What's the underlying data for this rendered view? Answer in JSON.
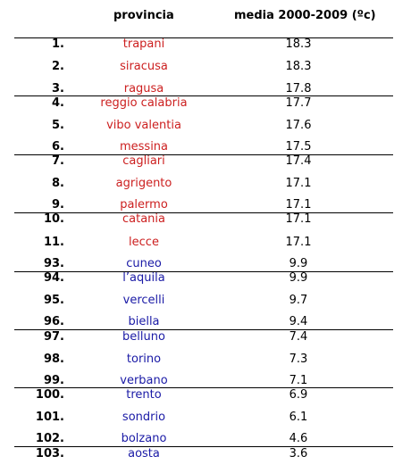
{
  "header": {
    "provincia_label": "provincia",
    "media_label": "media 2000-2009 (ºc)"
  },
  "colors": {
    "top": "#cc1f1f",
    "bottom": "#1a1aa6",
    "rules": "#000000"
  },
  "rows": [
    {
      "rank": "1.",
      "province": "trapani",
      "value": "18.3",
      "group": "top"
    },
    {
      "rank": "2.",
      "province": "siracusa",
      "value": "18.3",
      "group": "top"
    },
    {
      "rank": "3.",
      "province": "ragusa",
      "value": "17.8",
      "group": "top"
    },
    {
      "rank": "4.",
      "province": "reggio calabria",
      "value": "17.7",
      "group": "top"
    },
    {
      "rank": "5.",
      "province": "vibo valentia",
      "value": "17.6",
      "group": "top"
    },
    {
      "rank": "6.",
      "province": "messina",
      "value": "17.5",
      "group": "top"
    },
    {
      "rank": "7.",
      "province": "cagliari",
      "value": "17.4",
      "group": "top"
    },
    {
      "rank": "8.",
      "province": "agrigento",
      "value": "17.1",
      "group": "top"
    },
    {
      "rank": "9.",
      "province": "palermo",
      "value": "17.1",
      "group": "top"
    },
    {
      "rank": "10.",
      "province": "catania",
      "value": "17.1",
      "group": "top"
    },
    {
      "rank": "11.",
      "province": "lecce",
      "value": "17.1",
      "group": "top"
    },
    {
      "rank": "93.",
      "province": "cuneo",
      "value": "9.9",
      "group": "bottom"
    },
    {
      "rank": "94.",
      "province": "l’aquila",
      "value": "9.9",
      "group": "bottom"
    },
    {
      "rank": "95.",
      "province": "vercelli",
      "value": "9.7",
      "group": "bottom"
    },
    {
      "rank": "96.",
      "province": "biella",
      "value": "9.4",
      "group": "bottom"
    },
    {
      "rank": "97.",
      "province": "belluno",
      "value": "7.4",
      "group": "bottom"
    },
    {
      "rank": "98.",
      "province": "torino",
      "value": "7.3",
      "group": "bottom"
    },
    {
      "rank": "99.",
      "province": "verbano",
      "value": "7.1",
      "group": "bottom"
    },
    {
      "rank": "100.",
      "province": "trento",
      "value": "6.9",
      "group": "bottom"
    },
    {
      "rank": "101.",
      "province": "sondrio",
      "value": "6.1",
      "group": "bottom"
    },
    {
      "rank": "102.",
      "province": "bolzano",
      "value": "4.6",
      "group": "bottom"
    },
    {
      "rank": "103.",
      "province": "aosta",
      "value": "3.6",
      "group": "bottom"
    }
  ]
}
